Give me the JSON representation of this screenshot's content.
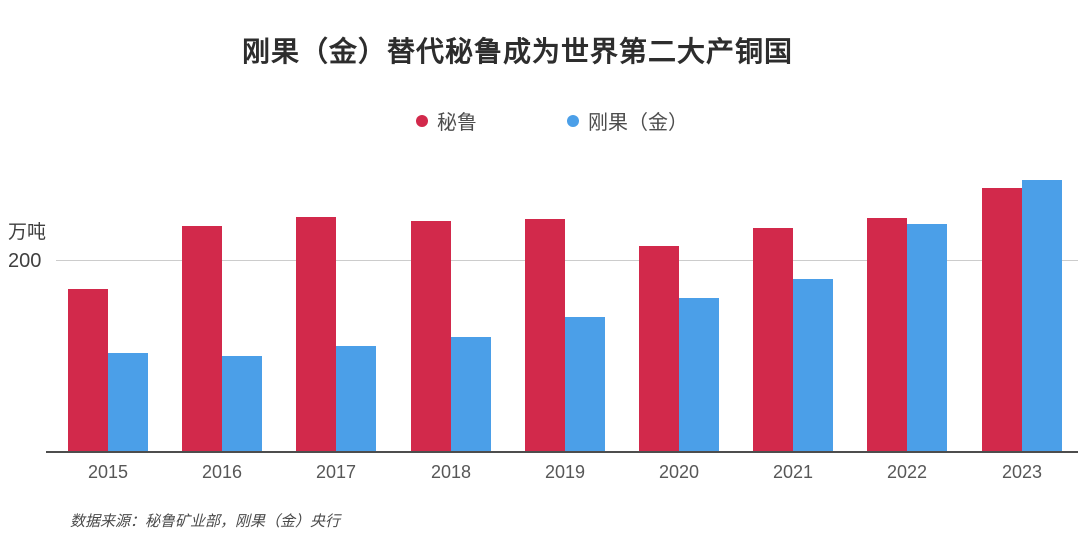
{
  "title": "刚果（金）替代秘鲁成为世界第二大产铜国",
  "legend": [
    {
      "label": "秘鲁",
      "color": "#d2294b"
    },
    {
      "label": "刚果（金）",
      "color": "#4b9fe8"
    }
  ],
  "y_axis": {
    "unit_label": "万吨",
    "tick_label": "200",
    "tick_value": 200
  },
  "source": "数据来源：秘鲁矿业部，刚果（金）央行",
  "colors": {
    "peru_red": "#d2294b",
    "congo_blue": "#4b9fe8",
    "gridline": "#cccccc",
    "axis_line": "#4d4d4d",
    "title_text": "#2d2d2d",
    "label_text": "#575757"
  },
  "chart_data": {
    "type": "bar",
    "title": "刚果（金）替代秘鲁成为世界第二大产铜国",
    "categories": [
      "2015",
      "2016",
      "2017",
      "2018",
      "2019",
      "2020",
      "2021",
      "2022",
      "2023"
    ],
    "series": [
      {
        "name": "秘鲁",
        "color": "#d2294b",
        "values": [
          170,
          235,
          245,
          241,
          243,
          215,
          233,
          244,
          275
        ]
      },
      {
        "name": "刚果（金）",
        "color": "#4b9fe8",
        "values": [
          103,
          100,
          110,
          120,
          141,
          160,
          180,
          238,
          283
        ]
      }
    ],
    "xlabel": "",
    "ylabel": "万吨",
    "ylim": [
      0,
      300
    ],
    "yticks": [
      200
    ],
    "grid": "single horizontal gridline at y=200, drawn behind bars",
    "legend_position": "top-center",
    "unit": "万吨 (10k tonnes)"
  }
}
